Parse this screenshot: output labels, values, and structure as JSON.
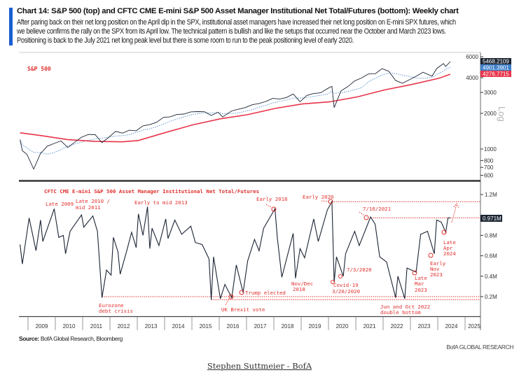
{
  "header": {
    "title": "Chart 14: S&P 500 (top) and CFTC CME E-mini S&P 500 Asset Manager Institutional Net Total/Futures (bottom): Weekly chart",
    "body_lines": [
      "After paring back on their net long position on the April dip in the SPX, institutional asset managers have increased their net long position on E-mini SPX futures, which",
      "we believe confirms the rally on the SPX from its April low. The technical pattern is bullish and like the setups that occurred near the October and March 2023 lows.",
      "Positioning is back to the July 2021 net long peak level but there is some room to run to the peak positioning level of early 2020."
    ]
  },
  "footer": {
    "source_label": "Source:",
    "source_text": " BofA Global Research, Bloomberg",
    "brand": "BofA GLOBAL RESEARCH",
    "signature": "Stephen Suttmeier - BofA"
  },
  "colors": {
    "price": "#1b2433",
    "ma_red": "#e8344a",
    "ma_blue": "#3f7fc8",
    "annotation": "#e0312f",
    "accent_bar": "#1a5fd0"
  },
  "x_axis": {
    "ticks": [
      "2009",
      "2010",
      "2011",
      "2012",
      "2013",
      "2014",
      "2015",
      "2016",
      "2017",
      "2018",
      "2019",
      "2020",
      "2021",
      "2022",
      "2023",
      "2024",
      "2025"
    ]
  },
  "chart_data": [
    {
      "type": "line",
      "title": "S&P 500",
      "yscale": "log",
      "ylabel": "Log",
      "ylim": [
        560,
        6500
      ],
      "yticks": [
        "6000",
        "4000",
        "3000",
        "2000",
        "1000",
        "800",
        "700",
        "600"
      ],
      "last_value_labels": [
        "5468.2109",
        "4901.3901",
        "4276.7715"
      ],
      "series": [
        {
          "key": "price",
          "points": [
            [
              "2008-09",
              1200
            ],
            [
              "2008-10",
              968
            ],
            [
              "2008-12",
              903
            ],
            [
              "2009-03",
              677
            ],
            [
              "2009-06",
              919
            ],
            [
              "2009-09",
              1057
            ],
            [
              "2009-12",
              1115
            ],
            [
              "2010-03",
              1169
            ],
            [
              "2010-06",
              1031
            ],
            [
              "2010-09",
              1141
            ],
            [
              "2010-12",
              1258
            ],
            [
              "2011-03",
              1326
            ],
            [
              "2011-06",
              1321
            ],
            [
              "2011-09",
              1131
            ],
            [
              "2011-12",
              1258
            ],
            [
              "2012-03",
              1408
            ],
            [
              "2012-06",
              1362
            ],
            [
              "2012-09",
              1441
            ],
            [
              "2012-12",
              1426
            ],
            [
              "2013-03",
              1569
            ],
            [
              "2013-06",
              1606
            ],
            [
              "2013-09",
              1682
            ],
            [
              "2013-12",
              1848
            ],
            [
              "2014-03",
              1872
            ],
            [
              "2014-06",
              1960
            ],
            [
              "2014-09",
              1972
            ],
            [
              "2014-12",
              2059
            ],
            [
              "2015-03",
              2068
            ],
            [
              "2015-06",
              2063
            ],
            [
              "2015-09",
              1920
            ],
            [
              "2015-12",
              2044
            ],
            [
              "2016-02",
              1864
            ],
            [
              "2016-06",
              2099
            ],
            [
              "2016-09",
              2168
            ],
            [
              "2016-12",
              2239
            ],
            [
              "2017-03",
              2363
            ],
            [
              "2017-06",
              2423
            ],
            [
              "2017-09",
              2519
            ],
            [
              "2017-12",
              2674
            ],
            [
              "2018-03",
              2641
            ],
            [
              "2018-06",
              2718
            ],
            [
              "2018-09",
              2914
            ],
            [
              "2018-12",
              2507
            ],
            [
              "2019-03",
              2834
            ],
            [
              "2019-06",
              2942
            ],
            [
              "2019-09",
              2977
            ],
            [
              "2019-12",
              3231
            ],
            [
              "2020-02",
              3380
            ],
            [
              "2020-03",
              2237
            ],
            [
              "2020-06",
              3100
            ],
            [
              "2020-09",
              3363
            ],
            [
              "2020-12",
              3756
            ],
            [
              "2021-03",
              3973
            ],
            [
              "2021-06",
              4298
            ],
            [
              "2021-09",
              4308
            ],
            [
              "2021-12",
              4766
            ],
            [
              "2022-03",
              4530
            ],
            [
              "2022-06",
              3785
            ],
            [
              "2022-09",
              3586
            ],
            [
              "2022-12",
              3840
            ],
            [
              "2023-03",
              4109
            ],
            [
              "2023-06",
              4450
            ],
            [
              "2023-10",
              4117
            ],
            [
              "2023-12",
              4770
            ],
            [
              "2024-03",
              5254
            ],
            [
              "2024-04",
              4967
            ],
            [
              "2024-06",
              5468.2109
            ]
          ]
        },
        {
          "key": "ma_blue",
          "last": 4901.3901
        },
        {
          "key": "ma_red",
          "points": [
            [
              "2008-09",
              1370
            ],
            [
              "2009-06",
              1300
            ],
            [
              "2010-06",
              1200
            ],
            [
              "2011-06",
              1160
            ],
            [
              "2012-06",
              1150
            ],
            [
              "2013-01",
              1180
            ],
            [
              "2014-01",
              1380
            ],
            [
              "2015-01",
              1600
            ],
            [
              "2016-01",
              1800
            ],
            [
              "2017-01",
              1950
            ],
            [
              "2018-01",
              2200
            ],
            [
              "2019-01",
              2400
            ],
            [
              "2020-01",
              2500
            ],
            [
              "2021-01",
              2750
            ],
            [
              "2022-01",
              3150
            ],
            [
              "2023-01",
              3500
            ],
            [
              "2024-01",
              3950
            ],
            [
              "2024-06",
              4276.7715
            ]
          ]
        }
      ]
    },
    {
      "type": "line",
      "title": "CFTC CME E-mini S&P 500 Asset Manager Institutional Net Total/Futures",
      "ylim": [
        0.1,
        1.3
      ],
      "yticks": [
        "1.2M",
        "0.8M",
        "0.6M",
        "0.4M",
        "0.2M"
      ],
      "last_value_label": "0.971M",
      "reference_levels": [
        1.13,
        0.971,
        0.2,
        0.17
      ],
      "series": [
        {
          "key": "positioning",
          "points": [
            [
              "2008-09",
              0.71
            ],
            [
              "2008-10",
              0.52
            ],
            [
              "2009-01",
              0.97
            ],
            [
              "2009-04",
              0.65
            ],
            [
              "2009-06",
              0.95
            ],
            [
              "2009-07",
              0.74
            ],
            [
              "2009-12",
              1.06
            ],
            [
              "2010-02",
              0.78
            ],
            [
              "2010-04",
              0.8
            ],
            [
              "2010-05",
              0.62
            ],
            [
              "2010-07",
              0.84
            ],
            [
              "2010-12",
              1.0
            ],
            [
              "2011-01",
              0.88
            ],
            [
              "2011-05",
              0.99
            ],
            [
              "2011-07",
              0.84
            ],
            [
              "2011-09",
              0.19
            ],
            [
              "2011-11",
              0.46
            ],
            [
              "2012-01",
              0.41
            ],
            [
              "2012-02",
              0.78
            ],
            [
              "2012-04",
              0.64
            ],
            [
              "2012-05",
              0.42
            ],
            [
              "2012-08",
              0.66
            ],
            [
              "2012-10",
              0.83
            ],
            [
              "2012-12",
              0.68
            ],
            [
              "2013-01",
              1.01
            ],
            [
              "2013-03",
              0.8
            ],
            [
              "2013-05",
              1.08
            ],
            [
              "2013-06",
              0.67
            ],
            [
              "2013-07",
              0.87
            ],
            [
              "2013-10",
              0.7
            ],
            [
              "2014-01",
              0.96
            ],
            [
              "2014-02",
              0.77
            ],
            [
              "2014-05",
              0.95
            ],
            [
              "2014-08",
              0.81
            ],
            [
              "2014-12",
              0.89
            ],
            [
              "2015-02",
              0.73
            ],
            [
              "2015-05",
              0.71
            ],
            [
              "2015-08",
              0.57
            ],
            [
              "2015-09",
              0.17
            ],
            [
              "2015-10",
              0.59
            ],
            [
              "2016-01",
              0.18
            ],
            [
              "2016-03",
              0.32
            ],
            [
              "2016-06",
              0.19
            ],
            [
              "2016-08",
              0.51
            ],
            [
              "2016-11",
              0.24
            ],
            [
              "2017-01",
              0.55
            ],
            [
              "2017-04",
              0.76
            ],
            [
              "2017-06",
              0.65
            ],
            [
              "2017-08",
              0.87
            ],
            [
              "2018-01",
              1.06
            ],
            [
              "2018-02",
              0.78
            ],
            [
              "2018-04",
              0.39
            ],
            [
              "2018-09",
              0.82
            ],
            [
              "2018-10",
              0.38
            ],
            [
              "2018-12",
              0.67
            ],
            [
              "2019-02",
              0.58
            ],
            [
              "2019-06",
              0.96
            ],
            [
              "2019-08",
              0.74
            ],
            [
              "2019-12",
              1.05
            ],
            [
              "2020-02",
              1.13
            ],
            [
              "2020-03",
              0.34
            ],
            [
              "2020-04",
              0.59
            ],
            [
              "2020-07",
              0.4
            ],
            [
              "2020-08",
              0.62
            ],
            [
              "2020-12",
              0.84
            ],
            [
              "2021-02",
              0.7
            ],
            [
              "2021-07",
              0.98
            ],
            [
              "2021-09",
              0.91
            ],
            [
              "2021-11",
              0.59
            ],
            [
              "2022-02",
              0.54
            ],
            [
              "2022-06",
              0.19
            ],
            [
              "2022-07",
              0.4
            ],
            [
              "2022-10",
              0.18
            ],
            [
              "2022-11",
              0.48
            ],
            [
              "2023-03",
              0.44
            ],
            [
              "2023-05",
              0.81
            ],
            [
              "2023-08",
              0.84
            ],
            [
              "2023-11",
              0.62
            ],
            [
              "2023-12",
              0.95
            ],
            [
              "2024-02",
              0.93
            ],
            [
              "2024-04",
              0.83
            ],
            [
              "2024-05",
              0.97
            ],
            [
              "2024-06",
              0.971
            ]
          ]
        }
      ],
      "annotations": {
        "late_2009": [
          "Late 2009"
        ],
        "late_2010": [
          "Late 2010 /",
          "mid 2011"
        ],
        "mid_2013": [
          "Early to mid 2013"
        ],
        "early_2018": [
          "Early 2018"
        ],
        "early_2020": [
          "Early 2020"
        ],
        "jul_2021": [
          "7/16/2021"
        ],
        "nov_2018": [
          "Nov/Dec",
          "2018"
        ],
        "covid": [
          "Covid-19",
          "3/20/2020"
        ],
        "jul_2020": [
          "7/3/2020"
        ],
        "mar_2023": [
          "Late",
          "Mar",
          "2023"
        ],
        "nov_2023": [
          "Early",
          "Nov",
          "2023"
        ],
        "apr_2024": [
          "Late",
          "Apr",
          "2024"
        ],
        "trump": [
          "Trump elected"
        ],
        "eurozone": [
          "Eurozone",
          "debt crisis"
        ],
        "brexit": [
          "UK Brexit vote"
        ],
        "double_bottom": [
          "Jun and Oct 2022",
          "double bottom"
        ]
      }
    }
  ]
}
